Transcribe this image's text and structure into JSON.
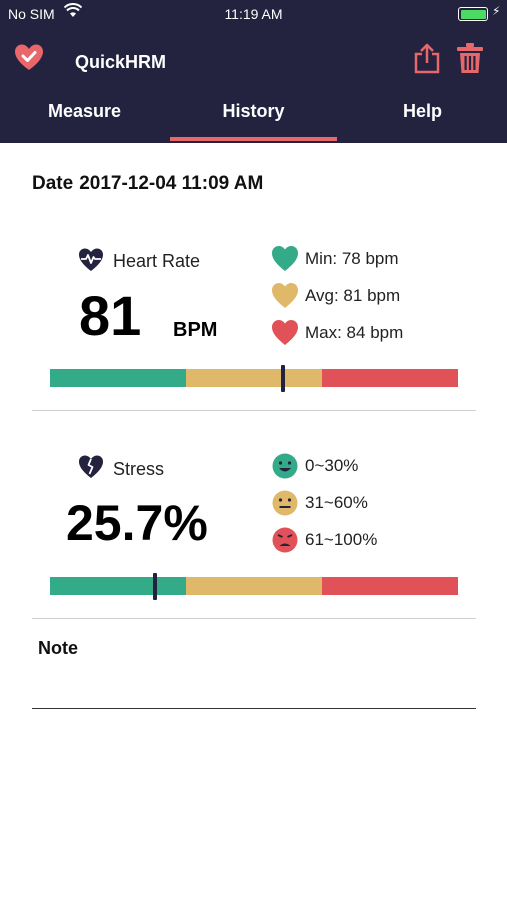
{
  "status_bar": {
    "carrier": "No SIM",
    "time": "11:19 AM"
  },
  "app": {
    "title": "QuickHRM"
  },
  "tabs": [
    {
      "label": "Measure"
    },
    {
      "label": "History"
    },
    {
      "label": "Help"
    }
  ],
  "active_tab": "History",
  "record": {
    "date_label": "Date",
    "date_value": "2017-12-04 11:09 AM"
  },
  "heart_rate": {
    "label": "Heart Rate",
    "value": "81",
    "unit": "BPM",
    "min": "Min: 78 bpm",
    "avg": "Avg: 81 bpm",
    "max": "Max: 84 bpm",
    "marker_fraction": 0.57
  },
  "stress": {
    "label": "Stress",
    "value": "25.7%",
    "ranges": [
      "0~30%",
      "31~60%",
      "61~100%"
    ],
    "marker_fraction": 0.257
  },
  "note": {
    "label": "Note"
  },
  "colors": {
    "header_bg": "#23223f",
    "accent": "#e8676a",
    "green": "#33aa88",
    "amber": "#e0b86a",
    "red": "#e05258"
  }
}
